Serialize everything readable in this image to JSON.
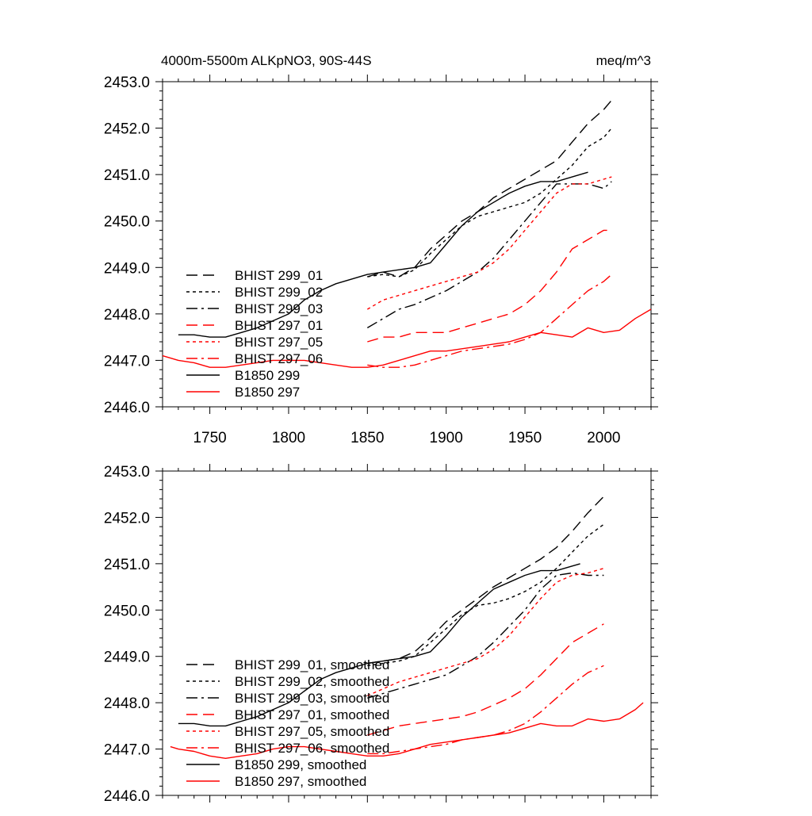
{
  "chart_data": [
    {
      "type": "line",
      "title": "4000m-5500m ALKpNO3, 90S-44S",
      "units": "meq/m^3",
      "xlabel": "",
      "ylabel": "",
      "xlim": [
        1720,
        2030
      ],
      "ylim": [
        2446.0,
        2453.0
      ],
      "x_ticks": [
        1750,
        1800,
        1850,
        1900,
        1950,
        2000
      ],
      "y_ticks": [
        "2446.0",
        "2447.0",
        "2448.0",
        "2449.0",
        "2450.0",
        "2451.0",
        "2452.0",
        "2453.0"
      ],
      "show_x_tick_labels": true,
      "grid": false,
      "legend": "bottom-left",
      "series": [
        {
          "name": "BHIST 299_01",
          "color": "#000000",
          "dash": "14,7",
          "x": [
            1850,
            1860,
            1870,
            1880,
            1890,
            1900,
            1910,
            1920,
            1930,
            1940,
            1950,
            1960,
            1970,
            1980,
            1990,
            2000,
            2005
          ],
          "y": [
            2448.8,
            2448.9,
            2448.8,
            2449.0,
            2449.4,
            2449.7,
            2450.0,
            2450.2,
            2450.5,
            2450.7,
            2450.9,
            2451.1,
            2451.3,
            2451.7,
            2452.1,
            2452.4,
            2452.6
          ]
        },
        {
          "name": "BHIST 299_02",
          "color": "#000000",
          "dash": "4,4",
          "x": [
            1850,
            1860,
            1870,
            1880,
            1890,
            1900,
            1910,
            1920,
            1930,
            1940,
            1950,
            1960,
            1970,
            1980,
            1990,
            2000,
            2005
          ],
          "y": [
            2448.8,
            2448.85,
            2448.8,
            2448.95,
            2449.3,
            2449.6,
            2449.9,
            2450.1,
            2450.2,
            2450.3,
            2450.4,
            2450.6,
            2450.9,
            2451.2,
            2451.6,
            2451.8,
            2452.0
          ]
        },
        {
          "name": "BHIST 299_03",
          "color": "#000000",
          "dash": "14,5,3,5",
          "x": [
            1850,
            1860,
            1870,
            1880,
            1890,
            1900,
            1910,
            1920,
            1930,
            1940,
            1950,
            1960,
            1970,
            1980,
            1990,
            2000,
            2005
          ],
          "y": [
            2447.7,
            2447.9,
            2448.1,
            2448.2,
            2448.35,
            2448.5,
            2448.7,
            2448.9,
            2449.2,
            2449.6,
            2450.0,
            2450.4,
            2450.8,
            2450.8,
            2450.8,
            2450.7,
            2450.85
          ]
        },
        {
          "name": "BHIST 297_01",
          "color": "#ff0000",
          "dash": "14,7",
          "x": [
            1850,
            1860,
            1870,
            1880,
            1890,
            1900,
            1910,
            1920,
            1930,
            1940,
            1950,
            1960,
            1970,
            1980,
            1990,
            2000,
            2005
          ],
          "y": [
            2447.4,
            2447.5,
            2447.5,
            2447.6,
            2447.6,
            2447.6,
            2447.7,
            2447.8,
            2447.9,
            2448.0,
            2448.2,
            2448.5,
            2448.9,
            2449.4,
            2449.6,
            2449.8,
            2449.8
          ]
        },
        {
          "name": "BHIST 297_05",
          "color": "#ff0000",
          "dash": "4,4",
          "x": [
            1850,
            1860,
            1870,
            1880,
            1890,
            1900,
            1910,
            1920,
            1930,
            1940,
            1950,
            1960,
            1970,
            1980,
            1990,
            2000,
            2005
          ],
          "y": [
            2448.1,
            2448.3,
            2448.4,
            2448.5,
            2448.6,
            2448.7,
            2448.8,
            2448.9,
            2449.1,
            2449.4,
            2449.8,
            2450.2,
            2450.6,
            2450.8,
            2450.8,
            2450.9,
            2450.95
          ]
        },
        {
          "name": "BHIST 297_06",
          "color": "#ff0000",
          "dash": "14,5,3,5",
          "x": [
            1850,
            1860,
            1870,
            1880,
            1890,
            1900,
            1910,
            1920,
            1930,
            1940,
            1950,
            1960,
            1970,
            1980,
            1990,
            2000,
            2005
          ],
          "y": [
            2446.9,
            2446.85,
            2446.85,
            2446.9,
            2447.0,
            2447.1,
            2447.2,
            2447.25,
            2447.3,
            2447.35,
            2447.45,
            2447.6,
            2447.9,
            2448.2,
            2448.5,
            2448.7,
            2448.85
          ]
        },
        {
          "name": "B1850 299",
          "color": "#000000",
          "dash": "",
          "x": [
            1730,
            1740,
            1750,
            1760,
            1770,
            1780,
            1790,
            1800,
            1810,
            1820,
            1830,
            1840,
            1850,
            1860,
            1870,
            1880,
            1890,
            1900,
            1910,
            1920,
            1930,
            1940,
            1950,
            1960,
            1970,
            1980,
            1990
          ],
          "y": [
            2447.55,
            2447.55,
            2447.5,
            2447.5,
            2447.6,
            2447.7,
            2447.85,
            2448.0,
            2448.3,
            2448.5,
            2448.65,
            2448.75,
            2448.85,
            2448.9,
            2448.95,
            2449.0,
            2449.1,
            2449.5,
            2449.9,
            2450.2,
            2450.4,
            2450.6,
            2450.75,
            2450.85,
            2450.85,
            2450.95,
            2451.05
          ]
        },
        {
          "name": "B1850 297",
          "color": "#ff0000",
          "dash": "",
          "x": [
            1720,
            1730,
            1740,
            1750,
            1760,
            1770,
            1780,
            1790,
            1800,
            1810,
            1820,
            1830,
            1840,
            1850,
            1860,
            1870,
            1880,
            1890,
            1900,
            1910,
            1920,
            1930,
            1940,
            1950,
            1960,
            1970,
            1980,
            1990,
            2000,
            2010,
            2020,
            2030
          ],
          "y": [
            2447.1,
            2447.0,
            2446.95,
            2446.85,
            2446.85,
            2446.9,
            2446.95,
            2447.0,
            2447.0,
            2447.0,
            2446.95,
            2446.9,
            2446.85,
            2446.85,
            2446.9,
            2447.0,
            2447.1,
            2447.2,
            2447.2,
            2447.25,
            2447.3,
            2447.35,
            2447.4,
            2447.5,
            2447.6,
            2447.55,
            2447.5,
            2447.7,
            2447.6,
            2447.65,
            2447.9,
            2448.1
          ]
        }
      ]
    },
    {
      "type": "line",
      "title": "",
      "units": "",
      "xlabel": "",
      "ylabel": "",
      "xlim": [
        1720,
        2030
      ],
      "ylim": [
        2446.0,
        2453.0
      ],
      "x_ticks": [
        1750,
        1800,
        1850,
        1900,
        1950,
        2000
      ],
      "y_ticks": [
        "2446.0",
        "2447.0",
        "2448.0",
        "2449.0",
        "2450.0",
        "2451.0",
        "2452.0",
        "2453.0"
      ],
      "show_x_tick_labels": false,
      "grid": false,
      "legend": "bottom-left",
      "series": [
        {
          "name": "BHIST 299_01, smoothed",
          "color": "#000000",
          "dash": "14,7",
          "x": [
            1850,
            1860,
            1870,
            1880,
            1890,
            1900,
            1910,
            1920,
            1930,
            1940,
            1950,
            1960,
            1970,
            1980,
            1990,
            2000
          ],
          "y": [
            2448.85,
            2448.9,
            2448.95,
            2449.1,
            2449.4,
            2449.75,
            2450.0,
            2450.25,
            2450.5,
            2450.7,
            2450.9,
            2451.1,
            2451.35,
            2451.7,
            2452.1,
            2452.45
          ]
        },
        {
          "name": "BHIST 299_02, smoothed",
          "color": "#000000",
          "dash": "4,4",
          "x": [
            1850,
            1860,
            1870,
            1880,
            1890,
            1900,
            1910,
            1920,
            1930,
            1940,
            1950,
            1960,
            1970,
            1980,
            1990,
            2000
          ],
          "y": [
            2448.8,
            2448.85,
            2448.9,
            2449.0,
            2449.3,
            2449.6,
            2449.9,
            2450.1,
            2450.15,
            2450.25,
            2450.4,
            2450.6,
            2450.9,
            2451.25,
            2451.6,
            2451.85
          ]
        },
        {
          "name": "BHIST 299_03, smoothed",
          "color": "#000000",
          "dash": "14,5,3,5",
          "x": [
            1850,
            1860,
            1870,
            1880,
            1890,
            1900,
            1910,
            1920,
            1930,
            1940,
            1950,
            1960,
            1970,
            1980,
            1990,
            2000
          ],
          "y": [
            2448.1,
            2448.2,
            2448.3,
            2448.4,
            2448.5,
            2448.6,
            2448.8,
            2449.0,
            2449.3,
            2449.65,
            2450.0,
            2450.45,
            2450.75,
            2450.8,
            2450.75,
            2450.75
          ]
        },
        {
          "name": "BHIST 297_01, smoothed",
          "color": "#ff0000",
          "dash": "14,7",
          "x": [
            1850,
            1860,
            1870,
            1880,
            1890,
            1900,
            1910,
            1920,
            1930,
            1940,
            1950,
            1960,
            1970,
            1980,
            1990,
            2000
          ],
          "y": [
            2447.3,
            2447.4,
            2447.5,
            2447.55,
            2447.6,
            2447.65,
            2447.7,
            2447.8,
            2447.95,
            2448.1,
            2448.3,
            2448.6,
            2448.95,
            2449.3,
            2449.5,
            2449.7
          ]
        },
        {
          "name": "BHIST 297_05, smoothed",
          "color": "#ff0000",
          "dash": "4,4",
          "x": [
            1850,
            1860,
            1870,
            1880,
            1890,
            1900,
            1910,
            1920,
            1930,
            1940,
            1950,
            1960,
            1970,
            1980,
            1990,
            2000
          ],
          "y": [
            2448.15,
            2448.3,
            2448.45,
            2448.55,
            2448.65,
            2448.75,
            2448.85,
            2448.95,
            2449.15,
            2449.45,
            2449.85,
            2450.25,
            2450.6,
            2450.75,
            2450.8,
            2450.9
          ]
        },
        {
          "name": "BHIST 297_06, smoothed",
          "color": "#ff0000",
          "dash": "14,5,3,5",
          "x": [
            1850,
            1860,
            1870,
            1880,
            1890,
            1900,
            1910,
            1920,
            1930,
            1940,
            1950,
            1960,
            1970,
            1980,
            1990,
            2000
          ],
          "y": [
            2446.9,
            2446.9,
            2446.95,
            2447.0,
            2447.05,
            2447.1,
            2447.2,
            2447.25,
            2447.3,
            2447.4,
            2447.55,
            2447.8,
            2448.1,
            2448.4,
            2448.65,
            2448.8
          ]
        },
        {
          "name": "B1850 299, smoothed",
          "color": "#000000",
          "dash": "",
          "x": [
            1730,
            1740,
            1750,
            1760,
            1770,
            1780,
            1790,
            1800,
            1810,
            1820,
            1830,
            1840,
            1850,
            1860,
            1870,
            1880,
            1890,
            1900,
            1910,
            1920,
            1930,
            1940,
            1950,
            1960,
            1970,
            1980,
            1985
          ],
          "y": [
            2447.55,
            2447.55,
            2447.5,
            2447.5,
            2447.6,
            2447.7,
            2447.85,
            2448.0,
            2448.25,
            2448.5,
            2448.65,
            2448.75,
            2448.85,
            2448.9,
            2448.95,
            2449.0,
            2449.1,
            2449.45,
            2449.85,
            2450.15,
            2450.45,
            2450.6,
            2450.75,
            2450.85,
            2450.85,
            2450.95,
            2451.0
          ]
        },
        {
          "name": "B1850 297, smoothed",
          "color": "#ff0000",
          "dash": "",
          "x": [
            1725,
            1730,
            1740,
            1750,
            1760,
            1770,
            1780,
            1790,
            1800,
            1810,
            1820,
            1830,
            1840,
            1850,
            1860,
            1870,
            1880,
            1890,
            1900,
            1910,
            1920,
            1930,
            1940,
            1950,
            1960,
            1970,
            1980,
            1990,
            2000,
            2010,
            2020,
            2025
          ],
          "y": [
            2447.05,
            2447.0,
            2446.95,
            2446.85,
            2446.8,
            2446.85,
            2446.9,
            2447.0,
            2447.05,
            2447.05,
            2447.0,
            2446.95,
            2446.9,
            2446.85,
            2446.85,
            2446.9,
            2447.0,
            2447.1,
            2447.15,
            2447.2,
            2447.25,
            2447.3,
            2447.35,
            2447.45,
            2447.55,
            2447.5,
            2447.5,
            2447.65,
            2447.6,
            2447.65,
            2447.85,
            2448.0
          ]
        }
      ]
    }
  ]
}
